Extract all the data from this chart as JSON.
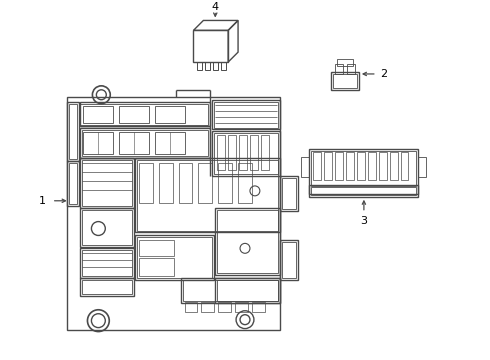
{
  "background_color": "#ffffff",
  "line_color": "#4a4a4a",
  "label_color": "#000000",
  "labels": [
    "1",
    "2",
    "3",
    "4"
  ],
  "figsize": [
    4.9,
    3.6
  ],
  "dpi": 100,
  "lw_main": 1.0,
  "lw_inner": 0.6
}
